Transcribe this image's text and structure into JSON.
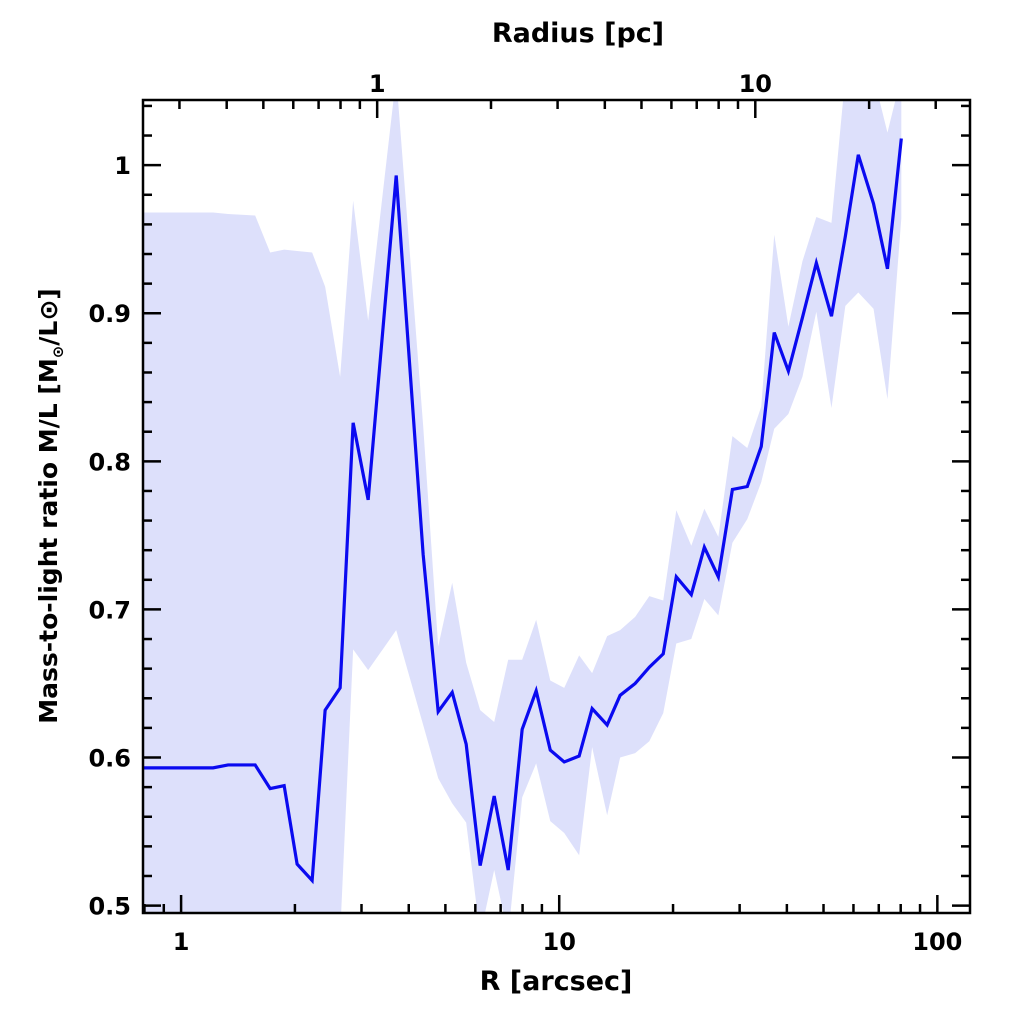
{
  "chart_data": {
    "type": "line",
    "title": "",
    "xlabel": "R [arcsec]",
    "top_xlabel": "Radius [pc]",
    "ylabel_parts": [
      "Mass-to-light ratio M/L [M",
      "⊙",
      "/L⊙]"
    ],
    "xscale": "log",
    "xlim": [
      0.793,
      122
    ],
    "ylim": [
      0.495,
      1.044
    ],
    "top_axis_pc_per_arcsec": 0.303,
    "xticks": [
      "1",
      "10",
      "100"
    ],
    "xtick_values": [
      1,
      10,
      100
    ],
    "top_xticks": [
      "1",
      "10"
    ],
    "top_xtick_values": [
      1,
      10
    ],
    "yticks": [
      "0.5",
      "0.6",
      "0.7",
      "0.8",
      "0.9",
      "1"
    ],
    "ytick_values": [
      0.5,
      0.6,
      0.7,
      0.8,
      0.9,
      1.0
    ],
    "grid": false,
    "legend": "none",
    "colors": {
      "line": "#0a0af0",
      "band": "#dde0fb",
      "axis": "#000000"
    },
    "series": [
      {
        "name": "M/L",
        "x": [
          0.803,
          1.215,
          1.331,
          1.57,
          1.72,
          1.873,
          2.027,
          2.221,
          2.404,
          2.634,
          2.851,
          3.124,
          3.706,
          4.367,
          4.786,
          5.212,
          5.675,
          6.18,
          6.73,
          7.33,
          7.98,
          8.69,
          9.47,
          10.31,
          11.29,
          12.22,
          13.39,
          14.49,
          15.88,
          17.31,
          18.84,
          20.4,
          22.35,
          24.2,
          26.35,
          28.71,
          31.43,
          34.22,
          37.04,
          40.37,
          43.97,
          47.86,
          52.48,
          57.11,
          61.8,
          67.8,
          73.8,
          80.3
        ],
        "y": [
          0.593,
          0.593,
          0.595,
          0.595,
          0.579,
          0.581,
          0.528,
          0.517,
          0.632,
          0.647,
          0.826,
          0.774,
          0.993,
          0.737,
          0.631,
          0.644,
          0.609,
          0.527,
          0.574,
          0.524,
          0.619,
          0.645,
          0.605,
          0.597,
          0.601,
          0.633,
          0.622,
          0.642,
          0.65,
          0.661,
          0.67,
          0.722,
          0.71,
          0.742,
          0.722,
          0.781,
          0.783,
          0.81,
          0.887,
          0.861,
          0.897,
          0.934,
          0.898,
          0.952,
          1.007,
          0.974,
          0.93,
          1.018
        ],
        "upper": [
          0.968,
          0.968,
          0.967,
          0.966,
          0.941,
          0.943,
          0.942,
          0.941,
          0.918,
          0.857,
          0.976,
          0.895,
          1.06,
          0.824,
          0.675,
          0.718,
          0.664,
          0.632,
          0.624,
          0.666,
          0.666,
          0.693,
          0.652,
          0.647,
          0.669,
          0.657,
          0.682,
          0.686,
          0.695,
          0.709,
          0.706,
          0.767,
          0.743,
          0.768,
          0.749,
          0.817,
          0.809,
          0.837,
          0.953,
          0.891,
          0.935,
          0.965,
          0.961,
          1.06,
          1.06,
          1.06,
          1.022,
          1.06
        ],
        "lower": [
          0.48,
          0.48,
          0.48,
          0.48,
          0.48,
          0.48,
          0.48,
          0.48,
          0.48,
          0.48,
          0.673,
          0.659,
          0.686,
          0.622,
          0.586,
          0.569,
          0.556,
          0.48,
          0.524,
          0.48,
          0.573,
          0.596,
          0.557,
          0.549,
          0.534,
          0.607,
          0.561,
          0.6,
          0.603,
          0.611,
          0.63,
          0.677,
          0.68,
          0.707,
          0.696,
          0.745,
          0.761,
          0.786,
          0.822,
          0.832,
          0.857,
          0.901,
          0.836,
          0.905,
          0.914,
          0.903,
          0.842,
          0.964
        ]
      }
    ]
  }
}
